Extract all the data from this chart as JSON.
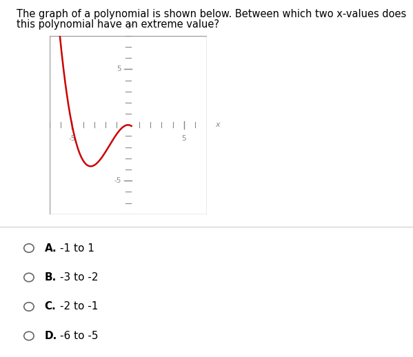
{
  "title_line1": "The graph of a polynomial is shown below. Between which two x-values does",
  "title_line2": "this polynomial have an extreme value?",
  "title_fontsize": 10.5,
  "choices": [
    {
      "label": "A.",
      "text": "-1 to 1"
    },
    {
      "label": "B.",
      "text": "-3 to -2"
    },
    {
      "label": "C.",
      "text": "-2 to -1"
    },
    {
      "label": "D.",
      "text": "-6 to -5"
    }
  ],
  "curve_color": "#cc0000",
  "axis_color": "#888888",
  "background_color": "#ffffff",
  "xlim": [
    -7,
    7
  ],
  "ylim": [
    -8,
    8
  ],
  "x_tick_labels": [
    [
      -5,
      "-5"
    ],
    [
      5,
      "5"
    ]
  ],
  "y_tick_labels": [
    [
      5,
      "5"
    ],
    [
      -5,
      "-5"
    ]
  ],
  "curve_linewidth": 1.8,
  "box_color": "#999999"
}
